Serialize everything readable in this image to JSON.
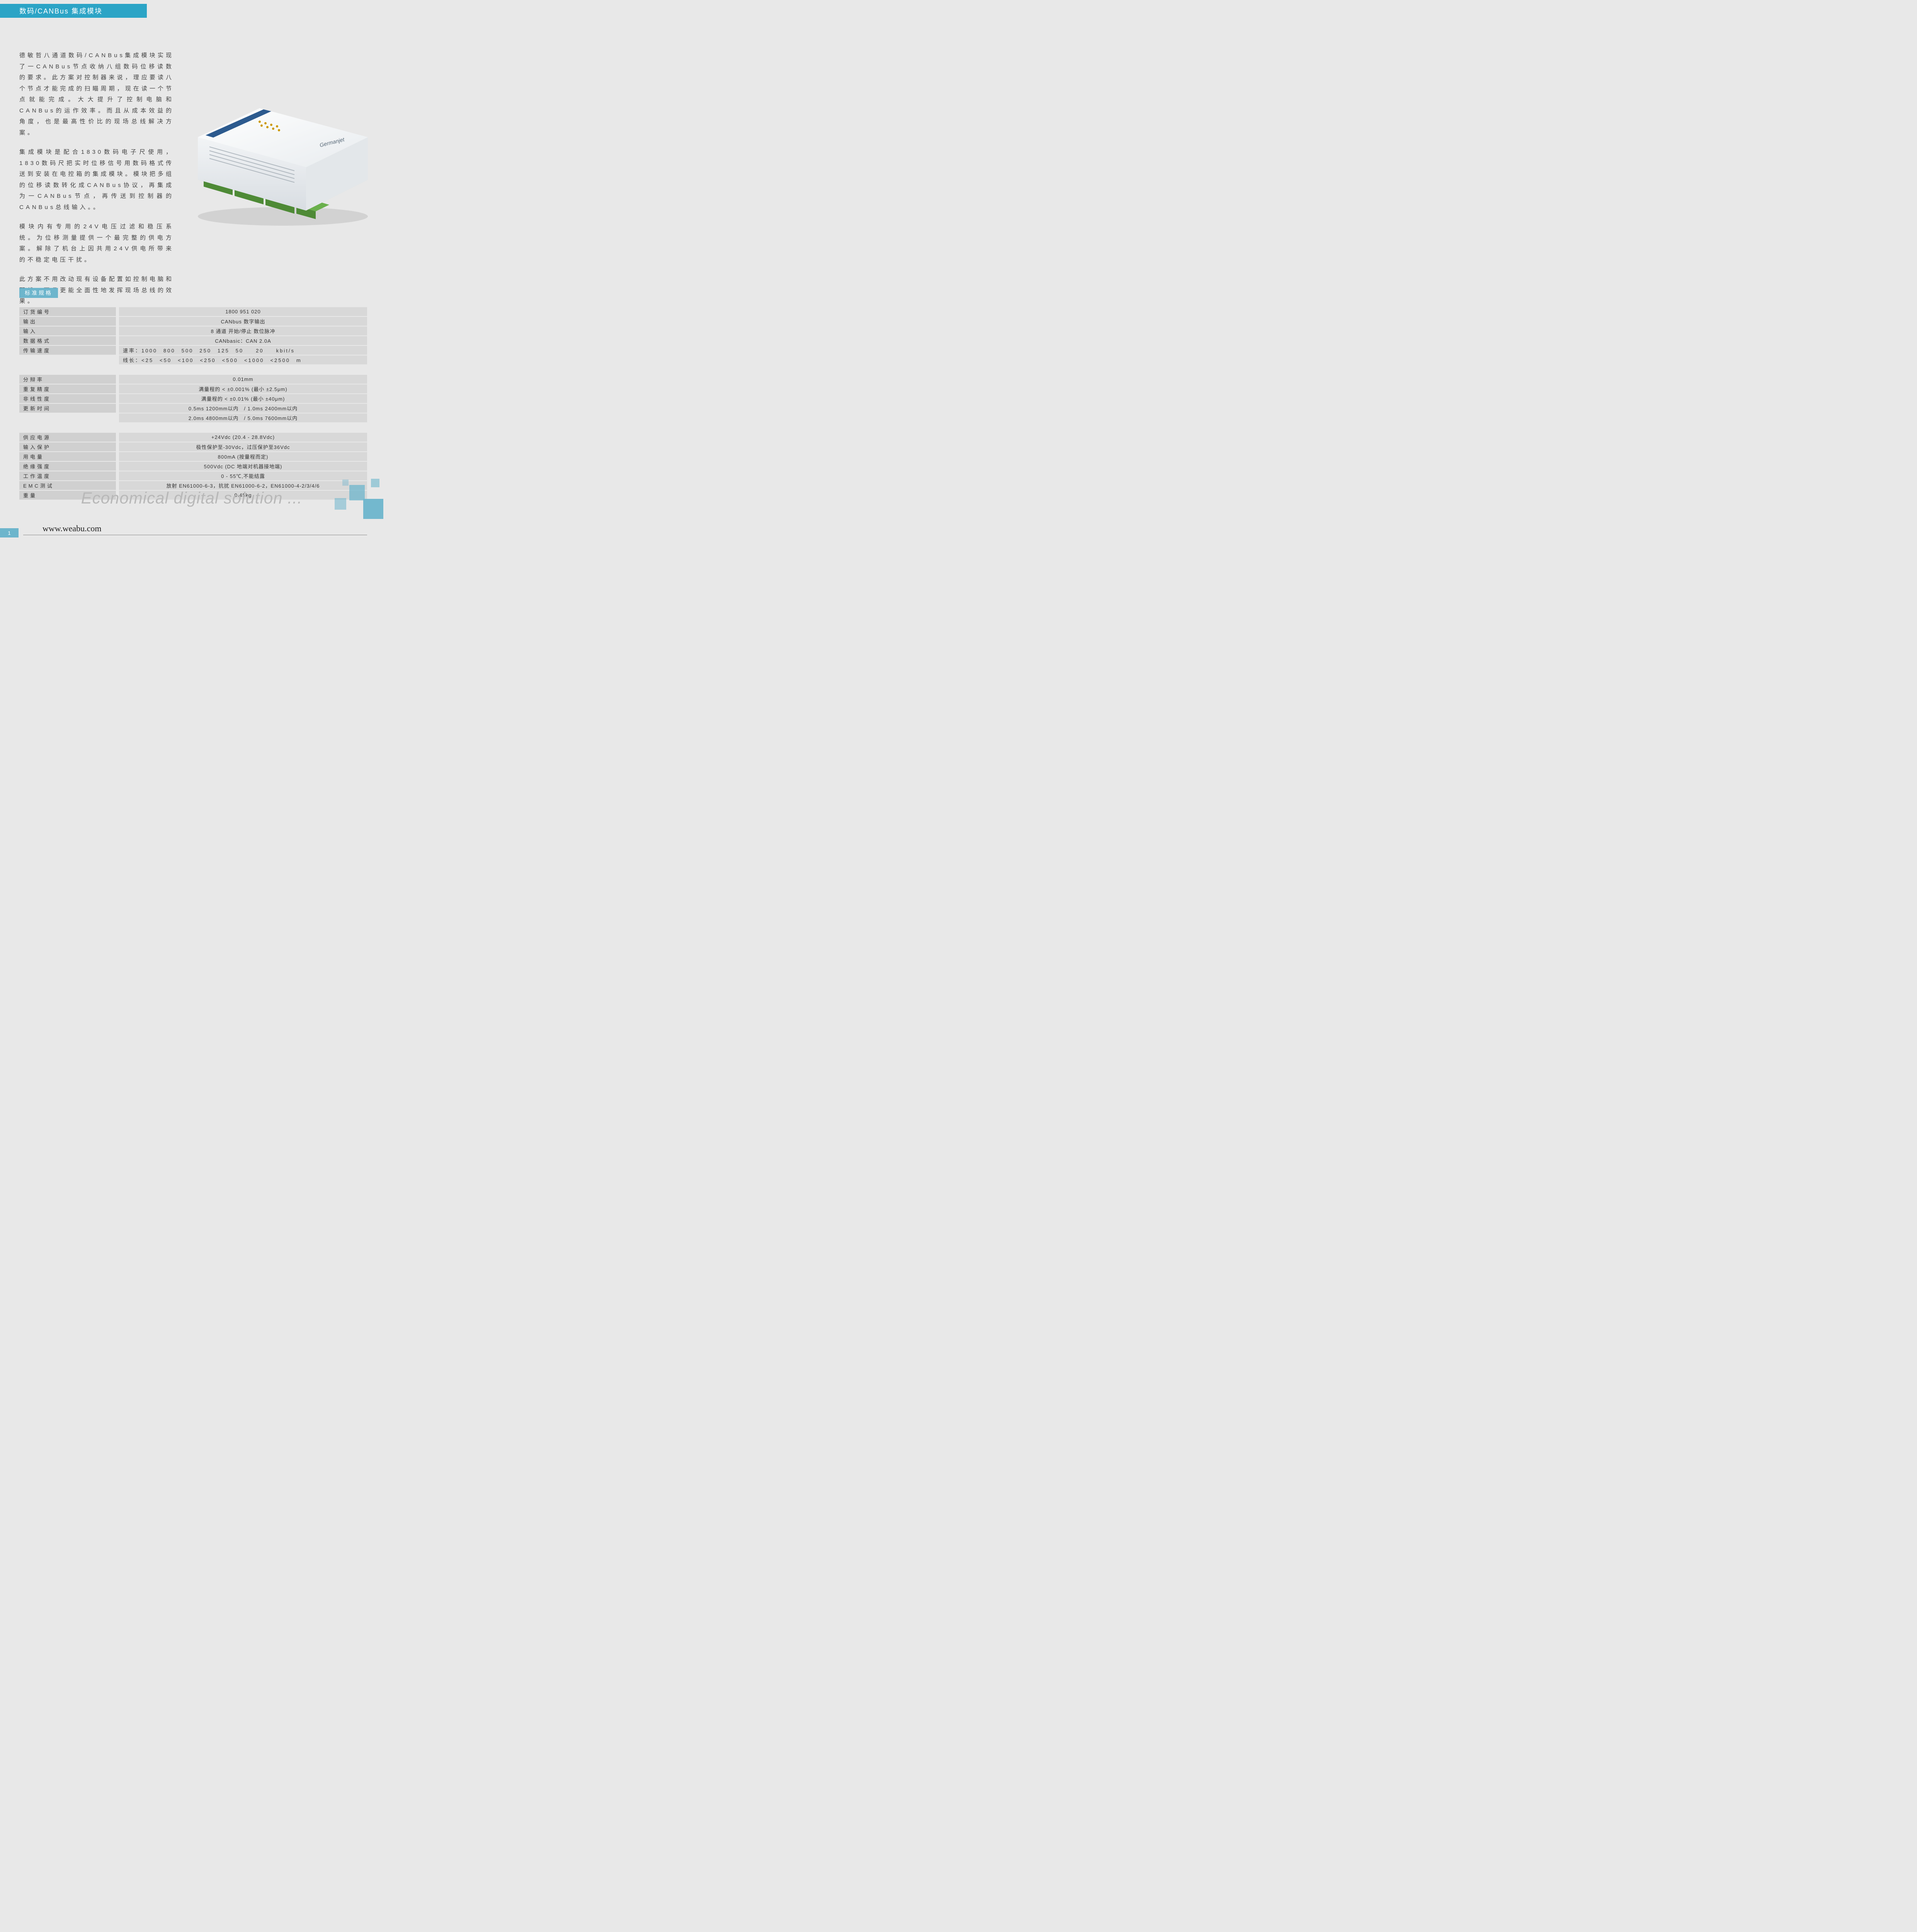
{
  "header": {
    "title": "数码/CANBus 集成模块"
  },
  "body": {
    "p1": "德敏哲八通道数码/CANBus集成模块实现了一CANBus节点收纳八组数码位移读数的要求。此方案对控制器来说，理应要读八个节点才能完成的扫瞄周期，现在读一个节点就能完成。大大提升了控制电脑和CANBus的运作效率。而且从成本效益的角度，也是最高性价比的现场总线解决方案。",
    "p2": "集成模块是配合1830数码电子尺使用，1830数码尺把实时位移信号用数码格式传送到安装在电控箱的集成模块。模块把多组的位移读数转化成CANBus协议，再集成为一CANBus节点，再传送到控制器的CANBus总线输入。。",
    "p3": "模块内有专用的24V电压过滤和稳压系统。为位移测量提供一个最完整的供电方案。解除了机台上因共用24V供电所带来的不稳定电压干扰。",
    "p4": "此方案不用改动现有设备配置如控制电脑和配线，而且更能全面性地发挥现场总线的效果。"
  },
  "spec_heading": "标准规格",
  "specs1": [
    {
      "label": "订货编号",
      "value": "1800 951 020"
    },
    {
      "label": "输出",
      "value": "CANbus 数字输出"
    },
    {
      "label": "输入",
      "value": "8 通道 开始/停止 数位脉冲"
    },
    {
      "label": "数据格式",
      "value": "CANbasic：CAN 2.0A"
    },
    {
      "label": "传输速度",
      "value": "速率：1000　800　500　250　125　50　　20　　kbit/s",
      "left": true
    },
    {
      "label": "",
      "value": "线长：<25　<50　<100　<250　<500　<1000　<2500　m",
      "left": true
    }
  ],
  "specs2": [
    {
      "label": "分辩率",
      "value": "0.01mm"
    },
    {
      "label": "重复精度",
      "value": "满量程的 < ±0.001% (最小 ±2.5μm)"
    },
    {
      "label": "非线性度",
      "value": "满量程的 < ±0.01% (最小 ±40μm)"
    },
    {
      "label": "更新时间",
      "value": "0.5ms 1200mm以内　/ 1.0ms 2400mm以内"
    },
    {
      "label": "",
      "value": "2.0ms 4800mm以内　/ 5.0ms 7600mm以内"
    }
  ],
  "specs3": [
    {
      "label": "供应电源",
      "value": "+24Vdc (20.4 - 28.8Vdc)"
    },
    {
      "label": "输入保护",
      "value": "极性保护至-30Vdc，过压保护至36Vdc"
    },
    {
      "label": "用电量",
      "value": "800mA (按量程而定)"
    },
    {
      "label": "绝缘强度",
      "value": "500Vdc (DC 地端对机器接地端)"
    },
    {
      "label": "工作温度",
      "value": "0 - 55℃,不能结露"
    },
    {
      "label": "EMC测试",
      "value": "放射 EN61000-6-3，抗扰 EN61000-6-2，EN61000-4-2/3/4/6"
    },
    {
      "label": "重量",
      "value": "0.45kg"
    }
  ],
  "tagline": "Economical digital solution ...",
  "footer": {
    "url": "www.weabu.com",
    "page": "1"
  },
  "product": {
    "brand": "Germanjet"
  },
  "colors": {
    "header_bg": "#2ba4c6",
    "accent": "#6db5cc",
    "page_bg": "#e8e8e8",
    "row_label_bg": "#d0d0d0",
    "row_value_bg": "#d8d8d8",
    "tagline_color": "#b8b8b8",
    "connector_green": "#6ab04c"
  }
}
